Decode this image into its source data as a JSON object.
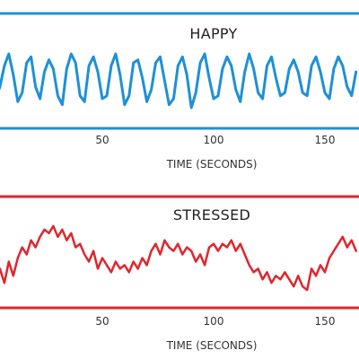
{
  "chart_data": [
    {
      "type": "line",
      "title": "HAPPY",
      "xlabel": "TIME (SECONDS)",
      "ylabel": "",
      "xlim": [
        0,
        165
      ],
      "ylim": [
        -1.2,
        1.2
      ],
      "xticks": [
        50,
        100,
        150
      ],
      "xtick_labels": [
        "50",
        "100",
        "150"
      ],
      "color": "#1e90d6",
      "frame_color": "#1e90d6",
      "series": [
        {
          "x": [
            0,
            2,
            4,
            6,
            8,
            10,
            12,
            14,
            16,
            18,
            20,
            22,
            24,
            26,
            28,
            30,
            32,
            34,
            36,
            38,
            40,
            42,
            44,
            46,
            48,
            50,
            52,
            54,
            56,
            58,
            60,
            62,
            64,
            66,
            68,
            70,
            72,
            74,
            76,
            78,
            80,
            82,
            84,
            86,
            88,
            90,
            92,
            94,
            96,
            98,
            100,
            102,
            104,
            106,
            108,
            110,
            112,
            114,
            116,
            118,
            120,
            122,
            124,
            126,
            128,
            130,
            132,
            134,
            136,
            138,
            140,
            142,
            144,
            146,
            148,
            150,
            152,
            154,
            156,
            158,
            160,
            162,
            164
          ],
          "y": [
            0.1,
            -0.6,
            -0.2,
            0.5,
            0.9,
            0.2,
            -0.7,
            -0.4,
            0.6,
            0.8,
            -0.2,
            -0.6,
            0.3,
            0.7,
            0.4,
            -0.5,
            -0.8,
            0.4,
            0.9,
            0.6,
            -0.5,
            -0.7,
            0.5,
            0.8,
            0.3,
            -0.6,
            -0.5,
            0.5,
            0.9,
            0.2,
            -0.8,
            -0.5,
            0.6,
            0.7,
            0.1,
            -0.7,
            -0.3,
            0.6,
            0.8,
            0.0,
            -0.8,
            -0.6,
            0.5,
            0.8,
            0.2,
            -0.9,
            -0.4,
            0.6,
            0.9,
            0.1,
            -0.6,
            -0.5,
            0.4,
            0.8,
            0.5,
            -0.3,
            -0.7,
            0.3,
            0.9,
            0.4,
            -0.4,
            -0.6,
            0.5,
            0.8,
            0.1,
            -0.5,
            -0.4,
            0.4,
            0.7,
            0.3,
            -0.4,
            -0.5,
            0.5,
            0.8,
            0.3,
            -0.4,
            -0.6,
            0.4,
            0.8,
            0.5,
            -0.2,
            -0.5,
            0.3
          ]
        }
      ]
    },
    {
      "type": "line",
      "title": "STRESSED",
      "xlabel": "TIME (SECONDS)",
      "ylabel": "",
      "xlim": [
        0,
        165
      ],
      "ylim": [
        -1.2,
        1.2
      ],
      "xticks": [
        50,
        100,
        150
      ],
      "xtick_labels": [
        "50",
        "100",
        "150"
      ],
      "color": "#e0262e",
      "frame_color": "#e0262e",
      "series": [
        {
          "x": [
            0,
            2,
            4,
            6,
            8,
            10,
            12,
            14,
            16,
            18,
            20,
            22,
            24,
            26,
            28,
            30,
            32,
            34,
            36,
            38,
            40,
            42,
            44,
            46,
            48,
            50,
            52,
            54,
            56,
            58,
            60,
            62,
            64,
            66,
            68,
            70,
            72,
            74,
            76,
            78,
            80,
            82,
            84,
            86,
            88,
            90,
            92,
            94,
            96,
            98,
            100,
            102,
            104,
            106,
            108,
            110,
            112,
            114,
            116,
            118,
            120,
            122,
            124,
            126,
            128,
            130,
            132,
            134,
            136,
            138,
            140,
            142,
            144,
            146,
            148,
            150,
            152,
            154,
            156,
            158,
            160,
            162,
            164
          ],
          "y": [
            -0.6,
            -0.9,
            -0.3,
            -0.7,
            -0.1,
            -0.5,
            0.0,
            0.3,
            0.1,
            0.5,
            0.3,
            0.6,
            0.8,
            0.7,
            0.9,
            0.6,
            0.8,
            0.5,
            0.7,
            0.3,
            0.4,
            0.1,
            -0.1,
            0.2,
            -0.3,
            0.0,
            -0.2,
            -0.4,
            -0.1,
            -0.3,
            -0.2,
            -0.4,
            -0.1,
            -0.3,
            0.0,
            -0.2,
            0.2,
            0.4,
            0.1,
            0.5,
            0.3,
            0.2,
            0.4,
            0.1,
            0.3,
            0.2,
            -0.1,
            0.1,
            -0.2,
            0.3,
            0.4,
            0.2,
            0.4,
            0.3,
            0.5,
            0.2,
            0.4,
            0.1,
            -0.2,
            -0.4,
            -0.3,
            -0.6,
            -0.4,
            -0.7,
            -0.5,
            -0.6,
            -0.4,
            -0.6,
            -0.8,
            -0.5,
            -0.8,
            -0.9,
            -0.3,
            -0.5,
            -0.2,
            -0.4,
            0.0,
            0.2,
            0.4,
            0.6,
            0.3,
            0.5,
            0.2
          ]
        }
      ]
    }
  ]
}
